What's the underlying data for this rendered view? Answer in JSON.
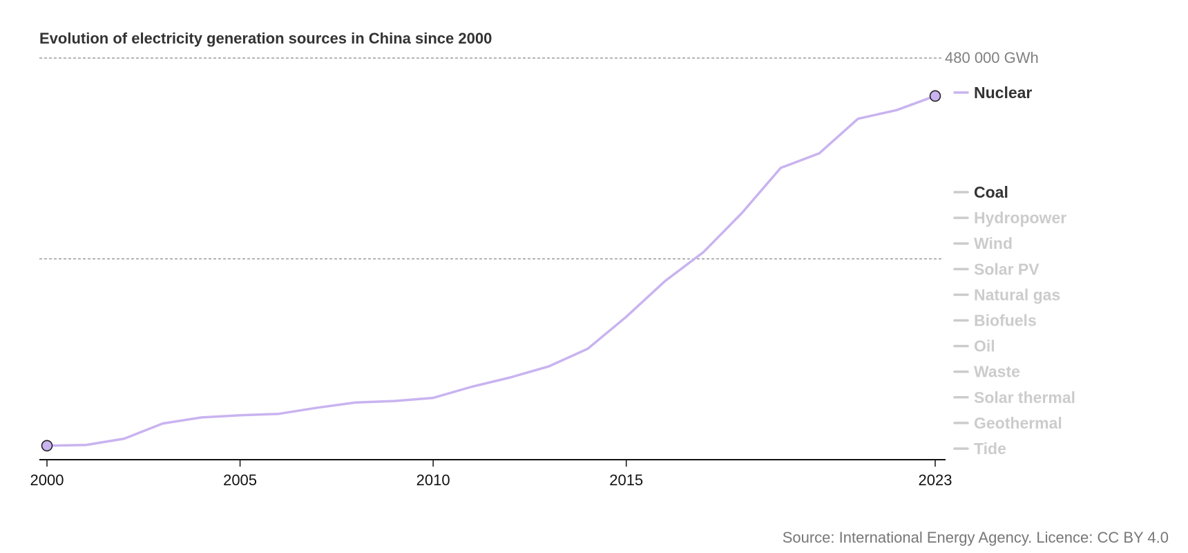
{
  "chart_data": {
    "type": "line",
    "title": "Evolution of electricity generation sources in China since 2000",
    "unit": "GWh",
    "y_max_label": "480 000 GWh",
    "ylim": [
      0,
      480000
    ],
    "gridlines": [
      240000,
      480000
    ],
    "x_ticks": [
      "2000",
      "2005",
      "2010",
      "2015",
      "2023"
    ],
    "x": [
      2000,
      2001,
      2002,
      2003,
      2004,
      2005,
      2006,
      2007,
      2008,
      2009,
      2010,
      2011,
      2012,
      2013,
      2014,
      2015,
      2016,
      2017,
      2018,
      2019,
      2020,
      2021,
      2022,
      2023
    ],
    "series": [
      {
        "name": "Nuclear",
        "color": "#c9b3f0",
        "values": [
          16700,
          17500,
          25100,
          43300,
          50500,
          53100,
          54800,
          62100,
          68400,
          70100,
          73900,
          87200,
          98300,
          111600,
          132500,
          170800,
          213300,
          248100,
          295000,
          348700,
          366200,
          407500,
          417800,
          434700
        ]
      }
    ],
    "legend": [
      {
        "label": "Nuclear",
        "state": "selected"
      },
      {
        "label": "Coal",
        "state": "active"
      },
      {
        "label": "Hydropower",
        "state": "inactive"
      },
      {
        "label": "Wind",
        "state": "inactive"
      },
      {
        "label": "Solar PV",
        "state": "inactive"
      },
      {
        "label": "Natural gas",
        "state": "inactive"
      },
      {
        "label": "Biofuels",
        "state": "inactive"
      },
      {
        "label": "Oil",
        "state": "inactive"
      },
      {
        "label": "Waste",
        "state": "inactive"
      },
      {
        "label": "Solar thermal",
        "state": "inactive"
      },
      {
        "label": "Geothermal",
        "state": "inactive"
      },
      {
        "label": "Tide",
        "state": "inactive"
      }
    ],
    "source": "Source: International Energy Agency. Licence: CC BY 4.0"
  },
  "colors": {
    "series_line": "#c9b3f0",
    "marker_fill": "#c9b3f0",
    "marker_stroke": "#222222",
    "legend_active_text": "#333333",
    "legend_inactive_text": "#cccccc",
    "legend_inactive_swatch": "#cccccc",
    "grid": "#888888",
    "axis": "#111111"
  }
}
